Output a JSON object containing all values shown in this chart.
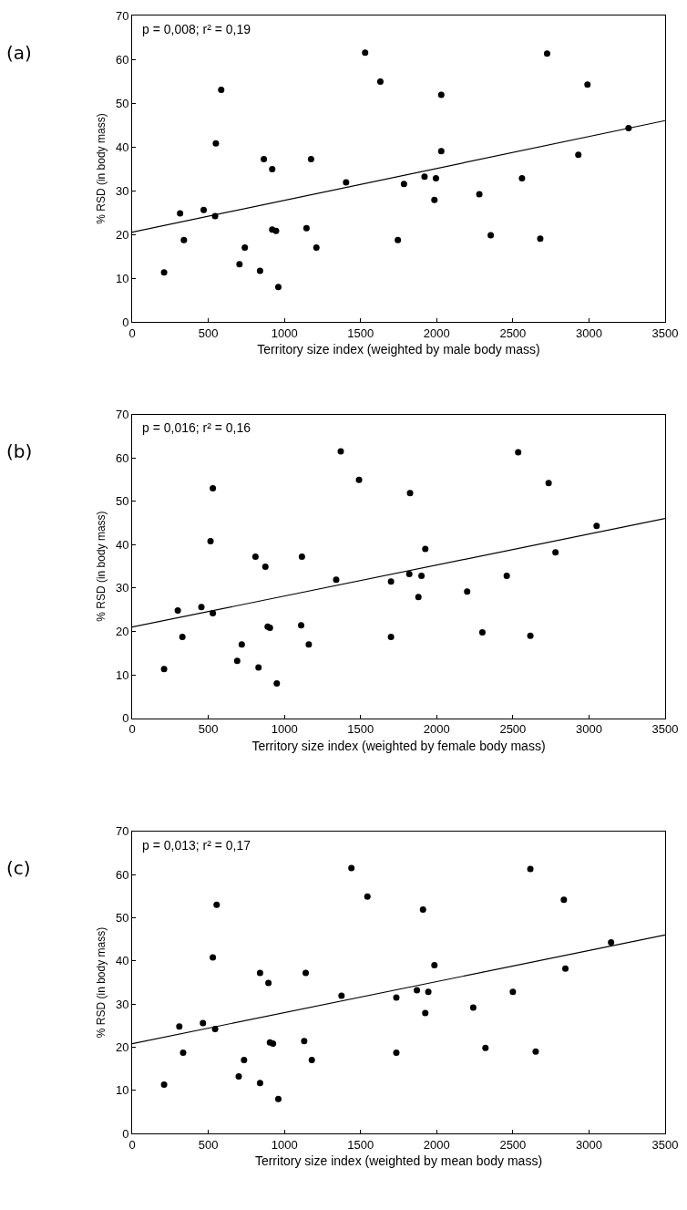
{
  "chart_data": [
    {
      "type": "scatter",
      "title": "(a)",
      "xlabel": "Territory size index (weighted by male body mass)",
      "ylabel": "% RSD (in body mass)",
      "annotations": [
        "p = 0,008; r² = 0,19"
      ],
      "xlim": [
        0,
        3500
      ],
      "xticks": [
        0,
        500,
        1000,
        1500,
        2000,
        2500,
        3000,
        3500
      ],
      "ylim": [
        0,
        70
      ],
      "yticks": [
        0,
        10,
        20,
        30,
        40,
        50,
        60,
        70
      ],
      "series": [
        {
          "marker": "circle",
          "color": "#000000",
          "x": [
            210,
            315,
            340,
            470,
            545,
            550,
            585,
            705,
            740,
            840,
            865,
            920,
            920,
            945,
            960,
            1145,
            1175,
            1210,
            1405,
            1530,
            1630,
            1745,
            1785,
            1920,
            1985,
            1995,
            2030,
            2030,
            2280,
            2355,
            2560,
            2680,
            2725,
            2930,
            2990,
            3260
          ],
          "values": [
            11.3,
            24.8,
            18.7,
            25.6,
            24.2,
            40.8,
            53,
            13.2,
            17,
            11.7,
            37.2,
            34.9,
            21.1,
            20.8,
            8,
            21.4,
            37.2,
            17,
            31.9,
            61.5,
            54.9,
            18.7,
            31.5,
            33.2,
            27.9,
            32.8,
            51.9,
            39,
            29.2,
            19.8,
            32.8,
            19,
            61.3,
            38.2,
            54.2,
            44.3
          ]
        },
        {
          "type": "line",
          "marker": "none",
          "color": "#000000",
          "x": [
            0,
            3500
          ],
          "values": [
            20.5,
            46
          ]
        }
      ]
    },
    {
      "type": "scatter",
      "title": "(b)",
      "xlabel": "Territory size index (weighted by female body mass)",
      "ylabel": "% RSD (in body mass)",
      "annotations": [
        "p = 0,016; r² = 0,16"
      ],
      "xlim": [
        0,
        3500
      ],
      "xticks": [
        0,
        500,
        1000,
        1500,
        2000,
        2500,
        3000,
        3500
      ],
      "ylim": [
        0,
        70
      ],
      "yticks": [
        0,
        10,
        20,
        30,
        40,
        50,
        60,
        70
      ],
      "series": [
        {
          "marker": "circle",
          "color": "#000000",
          "x": [
            210,
            300,
            330,
            455,
            530,
            515,
            530,
            690,
            720,
            830,
            810,
            875,
            890,
            905,
            950,
            1110,
            1115,
            1160,
            1340,
            1370,
            1490,
            1700,
            1700,
            1820,
            1880,
            1900,
            1825,
            1925,
            2200,
            2300,
            2460,
            2615,
            2535,
            2780,
            2735,
            3050
          ],
          "values": [
            11.3,
            24.8,
            18.7,
            25.6,
            24.2,
            40.8,
            53,
            13.2,
            17,
            11.7,
            37.2,
            34.9,
            21.1,
            20.8,
            8,
            21.4,
            37.2,
            17,
            31.9,
            61.5,
            54.9,
            18.7,
            31.5,
            33.2,
            27.9,
            32.8,
            51.9,
            39,
            29.2,
            19.8,
            32.8,
            19,
            61.3,
            38.2,
            54.2,
            44.3
          ]
        },
        {
          "type": "line",
          "marker": "none",
          "color": "#000000",
          "x": [
            0,
            3500
          ],
          "values": [
            21,
            46
          ]
        }
      ]
    },
    {
      "type": "scatter",
      "title": "(c)",
      "xlabel": "Territory size index (weighted by mean body mass)",
      "ylabel": "% RSD (in body mass)",
      "annotations": [
        "p = 0,013; r² = 0,17"
      ],
      "xlim": [
        0,
        3500
      ],
      "xticks": [
        0,
        500,
        1000,
        1500,
        2000,
        2500,
        3000,
        3500
      ],
      "ylim": [
        0,
        70
      ],
      "yticks": [
        0,
        10,
        20,
        30,
        40,
        50,
        60,
        70
      ],
      "series": [
        {
          "marker": "circle",
          "color": "#000000",
          "x": [
            210,
            310,
            335,
            465,
            545,
            530,
            555,
            700,
            735,
            840,
            840,
            895,
            905,
            925,
            960,
            1130,
            1140,
            1180,
            1375,
            1440,
            1545,
            1735,
            1735,
            1870,
            1925,
            1945,
            1910,
            1985,
            2240,
            2320,
            2500,
            2650,
            2615,
            2845,
            2835,
            3145
          ],
          "values": [
            11.3,
            24.8,
            18.7,
            25.6,
            24.2,
            40.8,
            53,
            13.2,
            17,
            11.7,
            37.2,
            34.9,
            21.1,
            20.8,
            8,
            21.4,
            37.2,
            17,
            31.9,
            61.5,
            54.9,
            18.7,
            31.5,
            33.2,
            27.9,
            32.8,
            51.9,
            39,
            29.2,
            19.8,
            32.8,
            19,
            61.3,
            38.2,
            54.2,
            44.3
          ]
        },
        {
          "type": "line",
          "marker": "none",
          "color": "#000000",
          "x": [
            0,
            3500
          ],
          "values": [
            20.8,
            46
          ]
        }
      ]
    }
  ]
}
